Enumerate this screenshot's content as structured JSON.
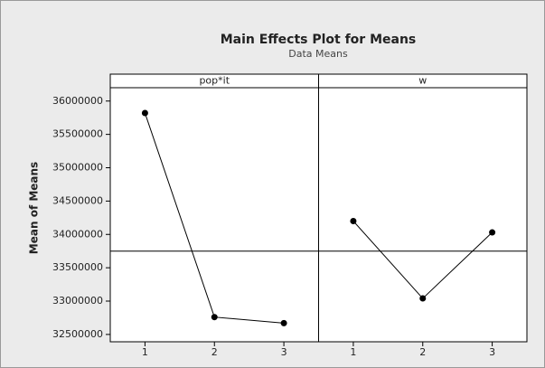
{
  "chart_data": {
    "type": "line",
    "title": "Main Effects Plot for Means",
    "subtitle": "Data Means",
    "y_label": "Mean of Means",
    "panels": [
      {
        "name": "pop*it",
        "categories": [
          "1",
          "2",
          "3"
        ],
        "values": [
          35820000,
          32760000,
          32670000
        ]
      },
      {
        "name": "w",
        "categories": [
          "1",
          "2",
          "3"
        ],
        "values": [
          34200000,
          33040000,
          34030000
        ]
      }
    ],
    "reference_line": 33750000,
    "ylim": [
      32390000,
      36200000
    ],
    "yticks": [
      32500000,
      33000000,
      33500000,
      34000000,
      34500000,
      35000000,
      35500000,
      36000000
    ],
    "color": "#000000"
  }
}
